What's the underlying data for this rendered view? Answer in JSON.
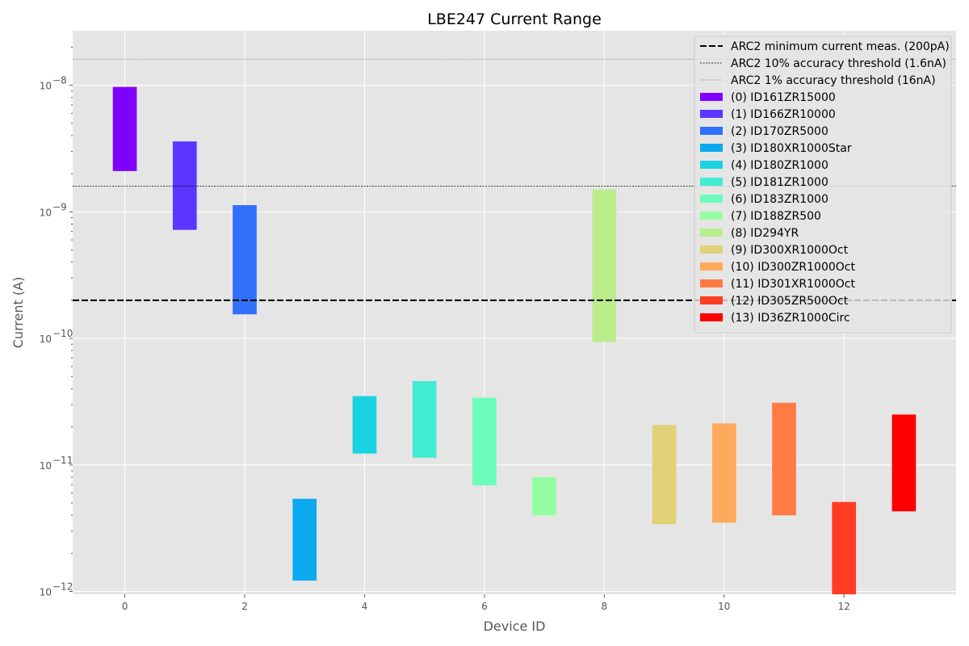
{
  "chart_data": {
    "type": "bar",
    "title": "LBE247 Current Range",
    "xlabel": "Device ID",
    "ylabel": "Current (A)",
    "yscale": "log",
    "ylim": [
      9.5e-13,
      2.7e-08
    ],
    "xlim": [
      -0.87,
      13.87
    ],
    "x_ticks": [
      0,
      2,
      4,
      6,
      8,
      10,
      12
    ],
    "x_tick_labels": [
      "0",
      "2",
      "4",
      "6",
      "8",
      "10",
      "12"
    ],
    "y_ticks": [
      1e-12,
      1e-11,
      1e-10,
      1e-09,
      1e-08
    ],
    "y_tick_labels": [
      "10",
      "10",
      "10",
      "10",
      "10"
    ],
    "y_tick_exponents": [
      "−12",
      "−11",
      "−10",
      "−9",
      "−8"
    ],
    "grid": true,
    "legend_position": "top-right",
    "reference_lines": [
      {
        "label": "ARC2 minimum current meas. (200pA)",
        "value": 2e-10,
        "style": "dashed",
        "color": "#000000"
      },
      {
        "label": "ARC2 10% accuracy threshold (1.6nA)",
        "value": 1.6e-09,
        "style": "dotted",
        "color": "#000000"
      },
      {
        "label": "ARC2 1% accuracy threshold (16nA)",
        "value": 1.6e-08,
        "style": "densely-dotted",
        "color": "#555555"
      }
    ],
    "series": [
      {
        "name": "(0) ID161ZR15000",
        "x": 0,
        "low": 2.1e-09,
        "high": 9.7e-09,
        "color": "#8000ff"
      },
      {
        "name": "(1) ID166ZR10000",
        "x": 1,
        "low": 7.2e-10,
        "high": 3.6e-09,
        "color": "#5a36fe"
      },
      {
        "name": "(2) ID170ZR5000",
        "x": 2,
        "low": 1.55e-10,
        "high": 1.13e-09,
        "color": "#3070fa"
      },
      {
        "name": "(3) ID180XR1000Star",
        "x": 3,
        "low": 1.22e-12,
        "high": 5.4e-12,
        "color": "#0ca9ef"
      },
      {
        "name": "(4) ID180ZR1000",
        "x": 4,
        "low": 1.23e-11,
        "high": 3.5e-11,
        "color": "#1ad2e2"
      },
      {
        "name": "(5) ID181ZR1000",
        "x": 5,
        "low": 1.14e-11,
        "high": 4.6e-11,
        "color": "#42ecd0"
      },
      {
        "name": "(6) ID183ZR1000",
        "x": 6,
        "low": 6.9e-12,
        "high": 3.4e-11,
        "color": "#6cfdbb"
      },
      {
        "name": "(7) ID188ZR500",
        "x": 7,
        "low": 4e-12,
        "high": 8e-12,
        "color": "#96fea2"
      },
      {
        "name": "(8) ID294YR",
        "x": 8,
        "low": 9.4e-11,
        "high": 1.5e-09,
        "color": "#bbed8c"
      },
      {
        "name": "(9) ID300XR1000Oct",
        "x": 9,
        "low": 3.4e-12,
        "high": 2.07e-11,
        "color": "#e2d176"
      },
      {
        "name": "(10) ID300ZR1000Oct",
        "x": 10,
        "low": 3.5e-12,
        "high": 2.13e-11,
        "color": "#fea95c"
      },
      {
        "name": "(11) ID301XR1000Oct",
        "x": 11,
        "low": 4e-12,
        "high": 3.1e-11,
        "color": "#ff7a45"
      },
      {
        "name": "(12) ID305ZR500Oct",
        "x": 12,
        "low": 9.5e-13,
        "high": 5.1e-12,
        "color": "#ff3c24"
      },
      {
        "name": "(13) ID36ZR1000Circ",
        "x": 13,
        "low": 4.3e-12,
        "high": 2.5e-11,
        "color": "#ff0000"
      }
    ]
  }
}
